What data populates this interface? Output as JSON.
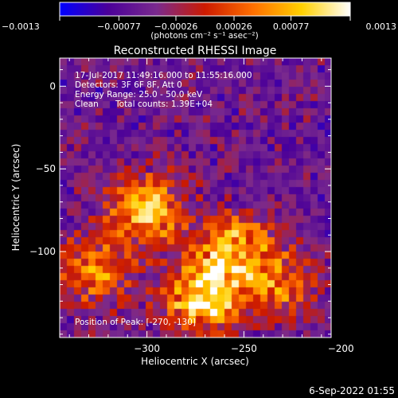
{
  "chart_data": {
    "type": "heatmap",
    "title": "Reconstructed RHESSI Image",
    "xlabel": "Heliocentric X (arcsec)",
    "ylabel": "Heliocentric Y (arcsec)",
    "xlim": [
      -345,
      -205
    ],
    "ylim": [
      -152,
      17
    ],
    "x_ticks": [
      -300,
      -250,
      -200
    ],
    "x_tick_labels": [
      "−300",
      "−250",
      "−200"
    ],
    "y_ticks": [
      0,
      -50,
      -100
    ],
    "y_tick_labels": [
      "0",
      "−50",
      "−100"
    ],
    "colorbar": {
      "range": [
        -0.0013,
        0.0013
      ],
      "tick_values": [
        -0.0013,
        -0.00077,
        -0.00026,
        0.00026,
        0.00077,
        0.0013
      ],
      "tick_labels": [
        "−0.0013",
        "−0.00077",
        "−0.00026",
        "0.00026",
        "0.00077",
        "0.0013"
      ],
      "unit_label": "(photons cm⁻² s⁻¹ asec⁻²)",
      "colors": [
        "#0000ff",
        "#4b0099",
        "#7a2a8e",
        "#cc1a00",
        "#ff7000",
        "#ffd000",
        "#ffffff"
      ]
    },
    "sources": [
      {
        "x": -270,
        "y": -128,
        "relative_intensity": 1.0
      },
      {
        "x": -300,
        "y": -75,
        "relative_intensity": 0.8
      },
      {
        "x": -255,
        "y": -98,
        "relative_intensity": 0.75
      },
      {
        "x": -328,
        "y": -112,
        "relative_intensity": 0.6
      },
      {
        "x": -230,
        "y": -120,
        "relative_intensity": 0.5
      }
    ],
    "annotations": {
      "time_range": "17-Jul-2017 11:49:16.000 to 11:55:16.000",
      "detectors": "Detectors: 3F 6F 8F, Att 0",
      "energy_range": "Energy Range: 25.0 - 50.0 keV",
      "method": "Clean",
      "total_counts": "Total counts: 1.39E+04",
      "peak_position": "Position of Peak: [-270, -130]"
    },
    "footer_date": "6-Sep-2022 01:55"
  }
}
